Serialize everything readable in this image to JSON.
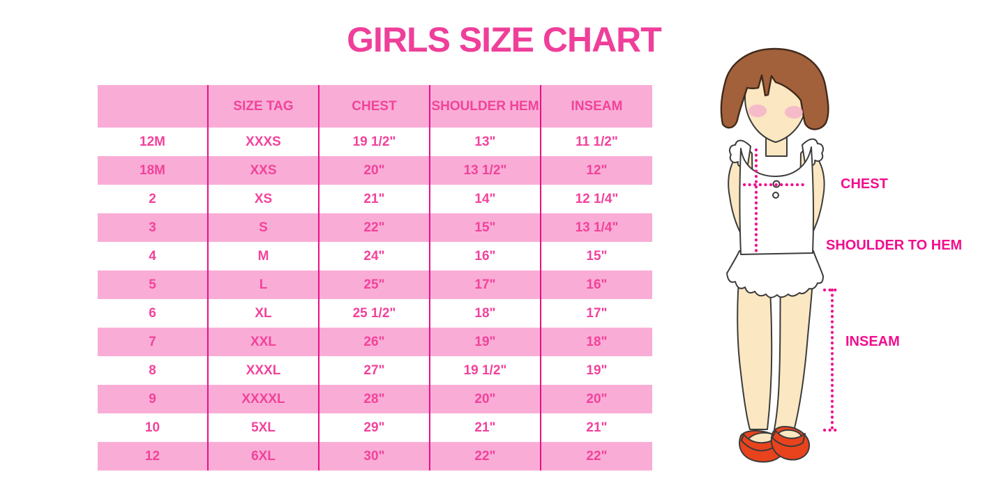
{
  "page": {
    "background": "#FFFFFF",
    "title": "GIRLS SIZE CHART",
    "title_color": "#EF3F9A"
  },
  "chart_data": {
    "type": "table",
    "title": "GIRLS SIZE CHART",
    "columns": [
      "",
      "SIZE TAG",
      "CHEST",
      "SHOULDER HEM",
      "INSEAM"
    ],
    "rows": [
      [
        "12M",
        "XXXS",
        "19 1/2\"",
        "13\"",
        "11 1/2\""
      ],
      [
        "18M",
        "XXS",
        "20\"",
        "13 1/2\"",
        "12\""
      ],
      [
        "2",
        "XS",
        "21\"",
        "14\"",
        "12 1/4\""
      ],
      [
        "3",
        "S",
        "22\"",
        "15\"",
        "13 1/4\""
      ],
      [
        "4",
        "M",
        "24\"",
        "16\"",
        "15\""
      ],
      [
        "5",
        "L",
        "25\"",
        "17\"",
        "16\""
      ],
      [
        "6",
        "XL",
        "25 1/2\"",
        "18\"",
        "17\""
      ],
      [
        "7",
        "XXL",
        "26\"",
        "19\"",
        "18\""
      ],
      [
        "8",
        "XXXL",
        "27\"",
        "19 1/2\"",
        "19\""
      ],
      [
        "9",
        "XXXXL",
        "28\"",
        "20\"",
        "20\""
      ],
      [
        "10",
        "5XL",
        "29\"",
        "21\"",
        "21\""
      ],
      [
        "12",
        "6XL",
        "30\"",
        "22\"",
        "22\""
      ]
    ],
    "layout": {
      "header_bg": "#F9ADD6",
      "zebra_row_bg": [
        "#FFFFFF",
        "#F9ADD6"
      ],
      "divider_color": "#EA0F87",
      "text_color": "#F2429B",
      "grid_lines": "vertical-only",
      "legend_position": "none"
    }
  },
  "figure": {
    "type": "girl-measurement-diagram",
    "labels": {
      "chest": "CHEST",
      "shoulder_to_hem": "SHOULDER TO HEM",
      "inseam": "INSEAM"
    },
    "label_color": "#F10E8E",
    "dotted_line_color": "#F10E8E",
    "colors": {
      "hair": "#A2613B",
      "skin": "#FBE7C1",
      "blush": "#F4B3C9",
      "outfit": "#FFFFFF",
      "shoes": "#E8431D",
      "outline": "#3B3B3B"
    }
  }
}
